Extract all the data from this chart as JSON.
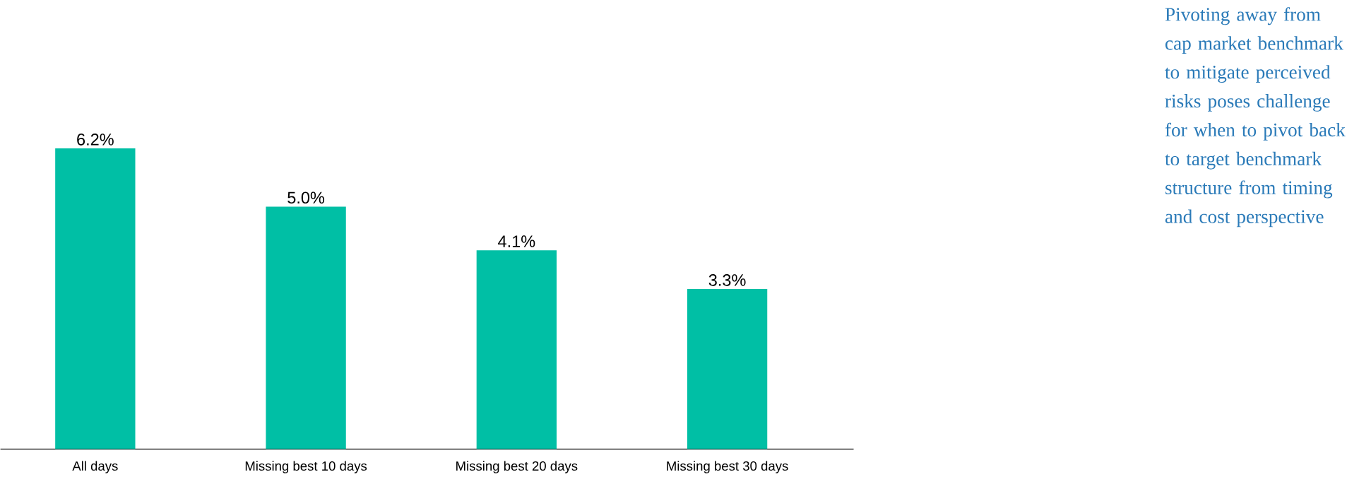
{
  "chart_data": {
    "type": "bar",
    "categories": [
      "All days",
      "Missing best 10 days",
      "Missing best 20 days",
      "Missing best 30 days"
    ],
    "values": [
      6.2,
      5.0,
      4.1,
      3.3
    ],
    "value_labels": [
      "6.2%",
      "5.0%",
      "4.1%",
      "3.3%"
    ],
    "color": "#00bfa5",
    "annotations": [
      "Pivoting away from cap market benchmark to mitigate perceived risks poses challenge for when to pivot back to target benchmark structure from timing and cost perspective"
    ]
  }
}
